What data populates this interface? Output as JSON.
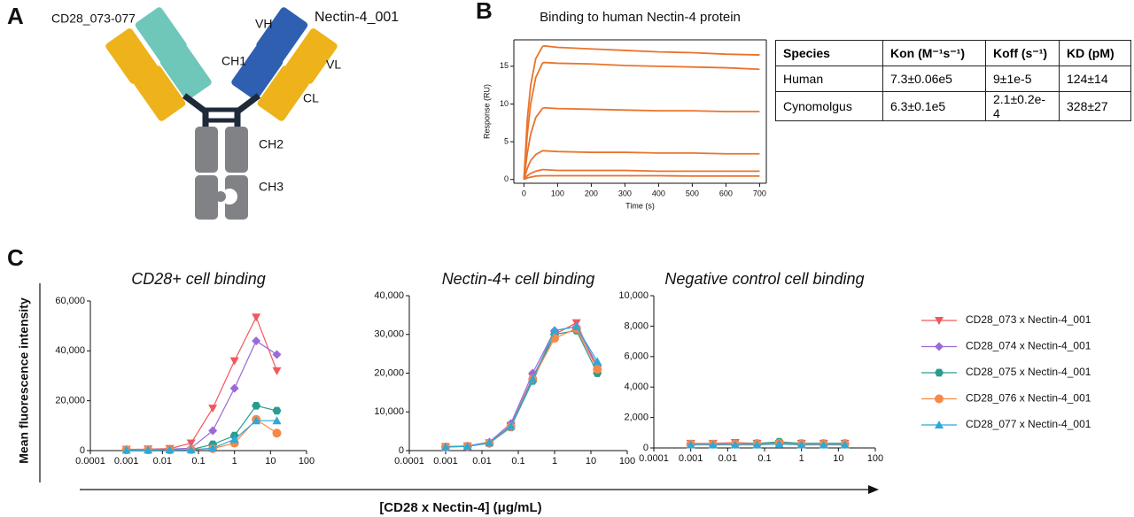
{
  "panels": [
    "A",
    "B",
    "C"
  ],
  "diagram": {
    "left_label": "CD28_073-077",
    "right_label": "Nectin-4_001",
    "vh": "VH",
    "vl": "VL",
    "ch1": "CH1",
    "cl": "CL",
    "ch2": "CH2",
    "ch3": "CH3"
  },
  "table": {
    "header": [
      "Species",
      "Kon (M⁻¹s⁻¹)",
      "Koff (s⁻¹)",
      "KD (pM)"
    ],
    "rows": [
      [
        "Human",
        "7.3±0.06e5",
        "9±1e-5",
        "124±14"
      ],
      [
        "Cynomolgus",
        "6.3±0.1e5",
        "2.1±0.2e-4",
        "328±27"
      ]
    ]
  },
  "panel_c": {
    "ylabel": "Mean fluorescence intensity",
    "xlabel": "[CD28 x Nectin-4] (μg/mL)"
  },
  "chart_data": [
    {
      "type": "line",
      "title": "Binding to human Nectin-4 protein",
      "xlabel": "Time (s)",
      "ylabel": "Response (RU)",
      "x": [
        0,
        10,
        20,
        35,
        55,
        60,
        100,
        200,
        300,
        400,
        500,
        600,
        700
      ],
      "xlim": [
        -30,
        720
      ],
      "xticks": [
        0,
        100,
        200,
        300,
        400,
        500,
        600,
        700
      ],
      "ylim": [
        -0.5,
        18.5
      ],
      "yticks": [
        0,
        5,
        10,
        15
      ],
      "series": [
        {
          "color": "#e8742c",
          "values": [
            0,
            8,
            12.5,
            16,
            17.6,
            17.7,
            17.5,
            17.3,
            17.1,
            16.9,
            16.8,
            16.6,
            16.5
          ]
        },
        {
          "color": "#e8742c",
          "values": [
            0,
            6,
            10,
            13.5,
            15.4,
            15.5,
            15.4,
            15.3,
            15.1,
            15.0,
            14.9,
            14.8,
            14.6
          ]
        },
        {
          "color": "#e8742c",
          "values": [
            0,
            3.5,
            6,
            8.2,
            9.4,
            9.5,
            9.4,
            9.3,
            9.2,
            9.1,
            9.1,
            9.0,
            9.0
          ]
        },
        {
          "color": "#e8742c",
          "values": [
            0,
            1.5,
            2.5,
            3.3,
            3.8,
            3.8,
            3.7,
            3.6,
            3.6,
            3.5,
            3.5,
            3.4,
            3.4
          ]
        },
        {
          "color": "#e8742c",
          "values": [
            0,
            0.5,
            0.8,
            1.1,
            1.3,
            1.3,
            1.2,
            1.2,
            1.2,
            1.1,
            1.1,
            1.1,
            1.1
          ]
        },
        {
          "color": "#e8742c",
          "values": [
            0,
            0.2,
            0.3,
            0.45,
            0.5,
            0.5,
            0.5,
            0.5,
            0.5,
            0.5,
            0.45,
            0.45,
            0.45
          ]
        }
      ]
    },
    {
      "type": "line",
      "title": "CD28+ cell binding",
      "xscale": "log",
      "legend": "right",
      "x": [
        0.001,
        0.004,
        0.016,
        0.0625,
        0.25,
        1,
        4,
        15
      ],
      "xlim": [
        0.0001,
        100
      ],
      "xticks": [
        0.0001,
        0.001,
        0.01,
        0.1,
        1,
        10,
        100
      ],
      "ylim": [
        0,
        60000
      ],
      "yticks": [
        0,
        {
          "value": 20000,
          "label": "20,000"
        },
        {
          "value": 40000,
          "label": "40,000"
        },
        {
          "value": 60000,
          "label": "60,000"
        }
      ],
      "series": [
        {
          "name": "CD28_073 x Nectin-4_001",
          "color": "#f0585e",
          "marker": "triangle-down",
          "values": [
            500,
            600,
            800,
            3000,
            17000,
            36000,
            53500,
            32000
          ]
        },
        {
          "name": "CD28_074 x Nectin-4_001",
          "color": "#9b6ad6",
          "marker": "diamond",
          "values": [
            500,
            500,
            600,
            1000,
            8000,
            25000,
            44000,
            38500
          ]
        },
        {
          "name": "CD28_075 x Nectin-4_001",
          "color": "#2a9c8f",
          "marker": "hexagon",
          "values": [
            300,
            300,
            300,
            400,
            2500,
            6000,
            18000,
            16000
          ]
        },
        {
          "name": "CD28_076 x Nectin-4_001",
          "color": "#f5894a",
          "marker": "circle",
          "values": [
            300,
            300,
            300,
            400,
            800,
            3000,
            12500,
            7000
          ]
        },
        {
          "name": "CD28_077 x Nectin-4_001",
          "color": "#2fa8d8",
          "marker": "triangle-up",
          "values": [
            200,
            200,
            300,
            300,
            1000,
            4500,
            12000,
            12000
          ]
        }
      ]
    },
    {
      "type": "line",
      "title": "Nectin-4+ cell binding",
      "xscale": "log",
      "x": [
        0.001,
        0.004,
        0.016,
        0.0625,
        0.25,
        1,
        4,
        15
      ],
      "xlim": [
        0.0001,
        100
      ],
      "xticks": [
        0.0001,
        0.001,
        0.01,
        0.1,
        1,
        10,
        100
      ],
      "ylim": [
        0,
        40000
      ],
      "yticks": [
        0,
        {
          "value": 10000,
          "label": "10,000"
        },
        {
          "value": 20000,
          "label": "20,000"
        },
        {
          "value": 30000,
          "label": "30,000"
        },
        {
          "value": 40000,
          "label": "40,000"
        }
      ],
      "series": [
        {
          "color": "#f0585e",
          "marker": "triangle-down",
          "values": [
            1000,
            1200,
            2000,
            6500,
            19000,
            30000,
            33000,
            21000
          ]
        },
        {
          "color": "#9b6ad6",
          "marker": "diamond",
          "values": [
            1000,
            1200,
            2200,
            7000,
            20000,
            31000,
            32000,
            22000
          ]
        },
        {
          "color": "#2a9c8f",
          "marker": "hexagon",
          "values": [
            1000,
            1100,
            1900,
            6000,
            18000,
            30000,
            31000,
            20000
          ]
        },
        {
          "color": "#f5894a",
          "marker": "circle",
          "values": [
            900,
            1100,
            1900,
            6200,
            18500,
            29000,
            31500,
            21000
          ]
        },
        {
          "color": "#2fa8d8",
          "marker": "triangle-up",
          "values": [
            900,
            1100,
            2000,
            6300,
            18500,
            31000,
            32000,
            23000
          ]
        }
      ]
    },
    {
      "type": "line",
      "title": "Negative control cell binding",
      "xscale": "log",
      "x": [
        0.001,
        0.004,
        0.016,
        0.0625,
        0.25,
        1,
        4,
        15
      ],
      "xlim": [
        0.0001,
        100
      ],
      "xticks": [
        0.0001,
        0.001,
        0.01,
        0.1,
        1,
        10,
        100
      ],
      "ylim": [
        0,
        10000
      ],
      "yticks": [
        0,
        {
          "value": 2000,
          "label": "2,000"
        },
        {
          "value": 4000,
          "label": "4,000"
        },
        {
          "value": 6000,
          "label": "6,000"
        },
        {
          "value": 8000,
          "label": "8,000"
        },
        {
          "value": 10000,
          "label": "10,000"
        }
      ],
      "series": [
        {
          "color": "#f0585e",
          "marker": "triangle-down",
          "values": [
            300,
            300,
            350,
            300,
            300,
            300,
            300,
            300
          ]
        },
        {
          "color": "#9b6ad6",
          "marker": "diamond",
          "values": [
            250,
            250,
            250,
            300,
            350,
            300,
            300,
            300
          ]
        },
        {
          "color": "#2a9c8f",
          "marker": "hexagon",
          "values": [
            250,
            250,
            250,
            300,
            400,
            300,
            300,
            300
          ]
        },
        {
          "color": "#f5894a",
          "marker": "circle",
          "values": [
            250,
            250,
            250,
            250,
            300,
            250,
            250,
            250
          ]
        },
        {
          "color": "#2fa8d8",
          "marker": "triangle-up",
          "values": [
            200,
            200,
            200,
            200,
            250,
            200,
            200,
            200
          ]
        }
      ]
    }
  ]
}
